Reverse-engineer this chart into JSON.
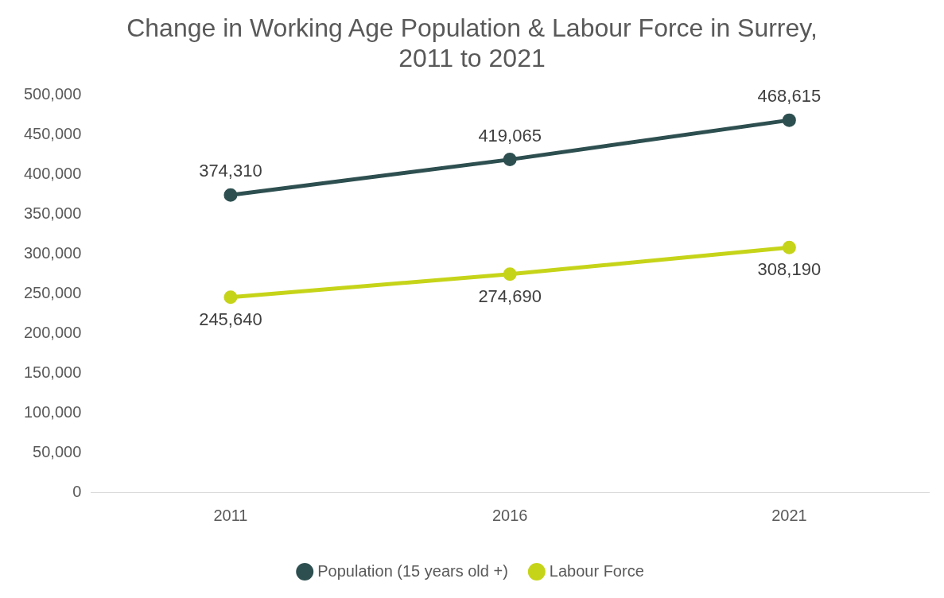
{
  "chart_data": {
    "type": "line",
    "title": "Change in Working Age Population & Labour Force in Surrey, 2011 to 2021",
    "categories": [
      "2011",
      "2016",
      "2021"
    ],
    "series": [
      {
        "name": "Population (15 years old +)",
        "color": "#2e4f50",
        "values": [
          374310,
          419065,
          468615
        ],
        "value_labels": [
          "374,310",
          "419,065",
          "468,615"
        ]
      },
      {
        "name": "Labour Force",
        "color": "#c6d419",
        "values": [
          245640,
          274690,
          308190
        ],
        "value_labels": [
          "245,640",
          "274,690",
          "308,190"
        ]
      }
    ],
    "ylim": [
      0,
      500000
    ],
    "yticks": [
      0,
      {
        "value": 50000,
        "label": "50,000"
      },
      {
        "value": 100000,
        "label": "100,000"
      },
      {
        "value": 150000,
        "label": "150,000"
      },
      {
        "value": 200000,
        "label": "200,000"
      },
      {
        "value": 250000,
        "label": "250,000"
      },
      {
        "value": 300000,
        "label": "300,000"
      },
      {
        "value": 350000,
        "label": "350,000"
      },
      {
        "value": 400000,
        "label": "400,000"
      },
      {
        "value": 450000,
        "label": "450,000"
      },
      {
        "value": 500000,
        "label": "500,000"
      }
    ],
    "grid": false,
    "legend": "bottom",
    "marker": "circle",
    "line_style": "solid"
  }
}
